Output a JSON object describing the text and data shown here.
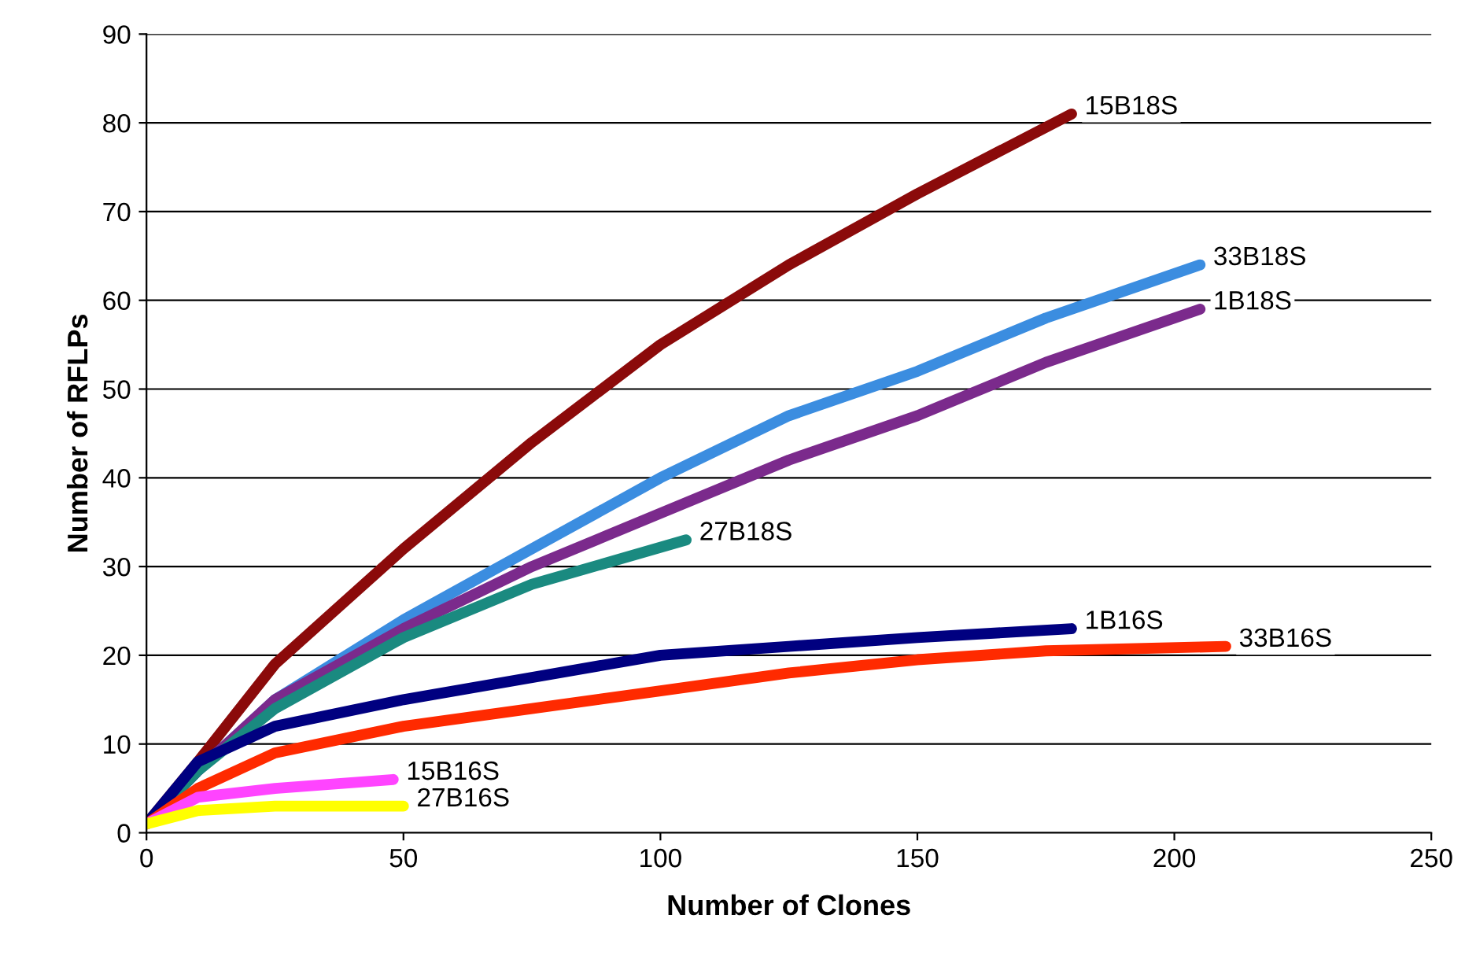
{
  "chart_data": {
    "type": "line",
    "xlabel": "Number of Clones",
    "ylabel": "Number of RFLPs",
    "xlim": [
      0,
      250
    ],
    "ylim": [
      0,
      90
    ],
    "xticks": [
      0,
      50,
      100,
      150,
      200,
      250
    ],
    "yticks": [
      0,
      10,
      20,
      30,
      40,
      50,
      60,
      70,
      80,
      90
    ],
    "grid": "y",
    "legend": false,
    "marker": "none",
    "line_style": "solid",
    "series": [
      {
        "name": "15B18S",
        "color": "#8b0a0a",
        "x": [
          0,
          10,
          25,
          50,
          75,
          100,
          125,
          150,
          180
        ],
        "values": [
          1,
          8,
          19,
          32,
          44,
          55,
          64,
          72,
          81
        ]
      },
      {
        "name": "33B18S",
        "color": "#3b8de0",
        "x": [
          0,
          10,
          25,
          50,
          75,
          100,
          125,
          150,
          175,
          205
        ],
        "values": [
          1,
          7,
          15,
          24,
          32,
          40,
          47,
          52,
          58,
          64
        ]
      },
      {
        "name": "1B18S",
        "color": "#7b2a8c",
        "x": [
          0,
          10,
          25,
          50,
          75,
          100,
          125,
          150,
          175,
          205
        ],
        "values": [
          1,
          7,
          15,
          23,
          30,
          36,
          42,
          47,
          53,
          59
        ]
      },
      {
        "name": "27B18S",
        "color": "#1a8a80",
        "x": [
          0,
          10,
          25,
          50,
          75,
          105
        ],
        "values": [
          1,
          7,
          14,
          22,
          28,
          33
        ]
      },
      {
        "name": "1B16S",
        "color": "#000080",
        "x": [
          0,
          10,
          25,
          50,
          75,
          100,
          125,
          150,
          180
        ],
        "values": [
          1,
          8,
          12,
          15,
          17.5,
          20,
          21,
          22,
          23
        ]
      },
      {
        "name": "33B16S",
        "color": "#ff2a00",
        "x": [
          0,
          10,
          25,
          50,
          75,
          100,
          125,
          150,
          175,
          210
        ],
        "values": [
          1,
          5,
          9,
          12,
          14,
          16,
          18,
          19.5,
          20.5,
          21
        ]
      },
      {
        "name": "15B16S",
        "color": "#ff44ff",
        "x": [
          0,
          10,
          25,
          48
        ],
        "values": [
          1,
          4,
          5,
          6
        ]
      },
      {
        "name": "27B16S",
        "color": "#ffff00",
        "x": [
          0,
          10,
          25,
          50
        ],
        "values": [
          1,
          2.5,
          3,
          3
        ]
      }
    ]
  }
}
